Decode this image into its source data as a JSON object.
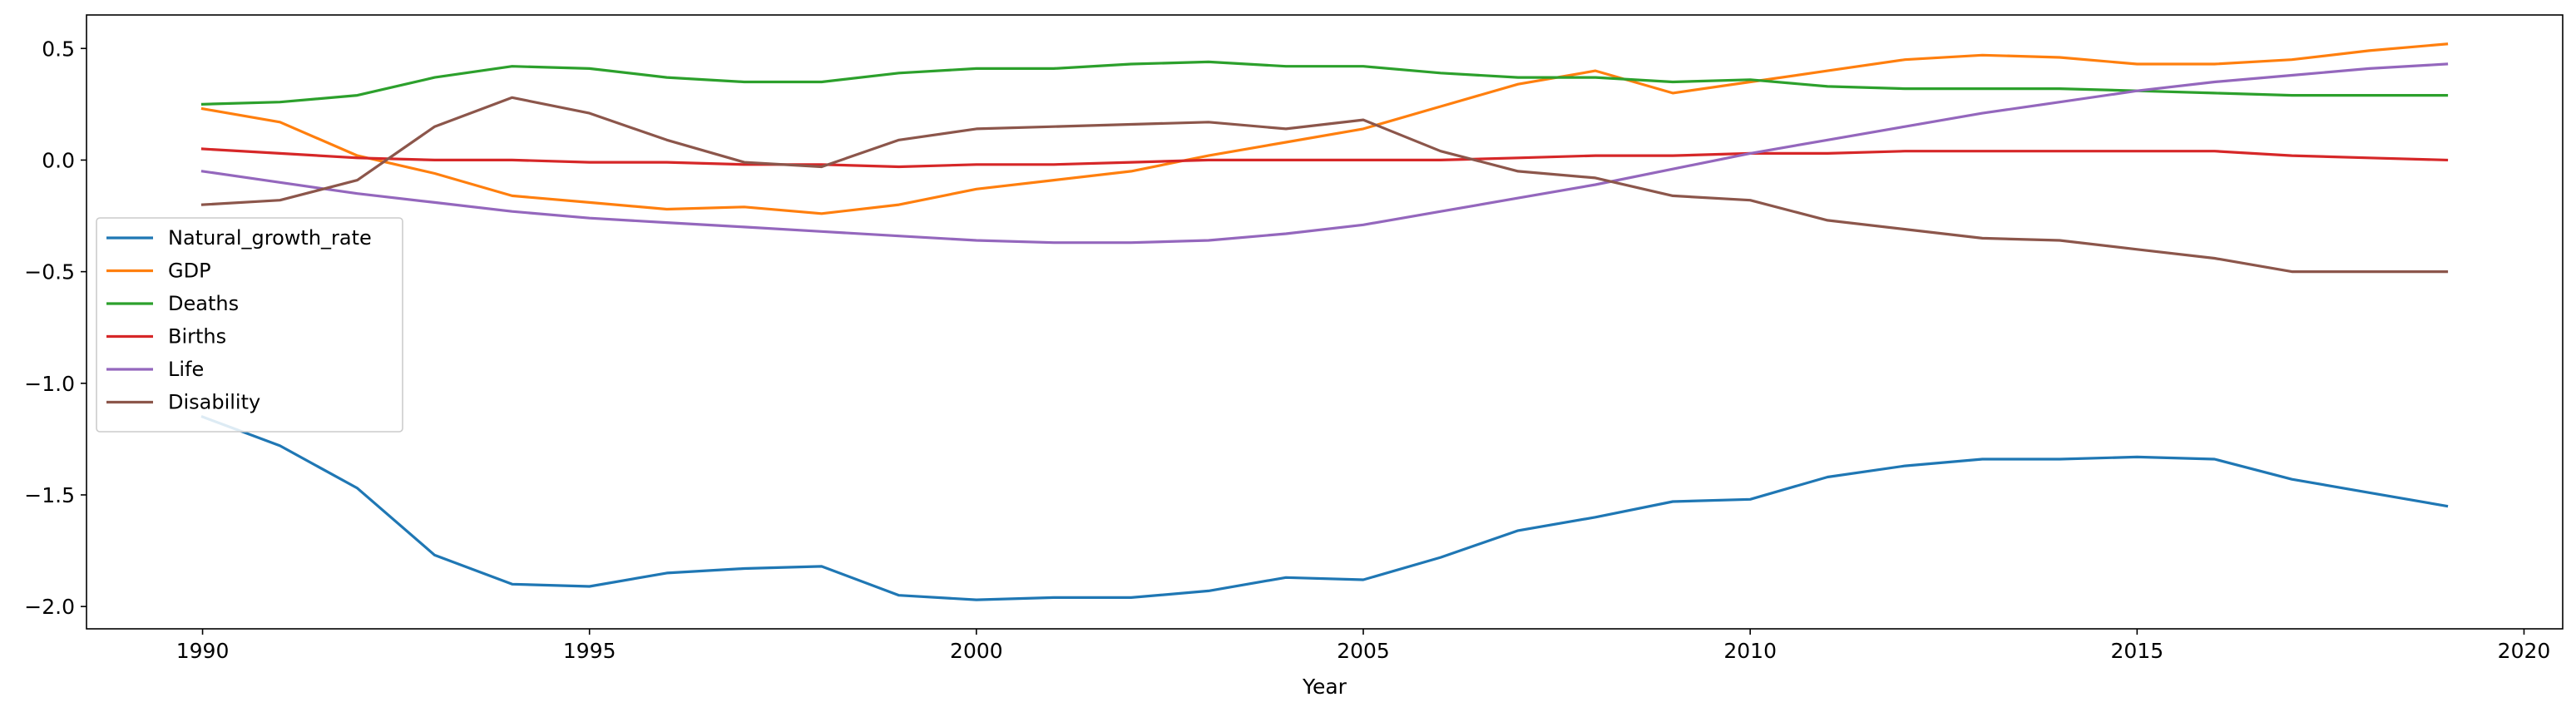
{
  "chart_data": {
    "type": "line",
    "xlabel": "Year",
    "ylabel": "",
    "xlim": [
      1988.5,
      2020.5
    ],
    "ylim": [
      -2.1,
      0.65
    ],
    "x_ticks": [
      1990,
      1995,
      2000,
      2005,
      2010,
      2015,
      2020
    ],
    "y_ticks": [
      0.5,
      0.0,
      -0.5,
      -1.0,
      -1.5,
      -2.0
    ],
    "x_tick_labels": [
      "1990",
      "1995",
      "2000",
      "2005",
      "2010",
      "2015",
      "2020"
    ],
    "y_tick_labels": [
      "0.5",
      "0.0",
      "−0.5",
      "−1.0",
      "−1.5",
      "−2.0"
    ],
    "grid": false,
    "legend_position": "center-left",
    "x": [
      1990,
      1991,
      1992,
      1993,
      1994,
      1995,
      1996,
      1997,
      1998,
      1999,
      2000,
      2001,
      2002,
      2003,
      2004,
      2005,
      2006,
      2007,
      2008,
      2009,
      2010,
      2011,
      2012,
      2013,
      2014,
      2015,
      2016,
      2017,
      2018,
      2019
    ],
    "series": [
      {
        "name": "Natural_growth_rate",
        "color": "#1f77b4",
        "values": [
          -1.15,
          -1.28,
          -1.47,
          -1.77,
          -1.9,
          -1.91,
          -1.85,
          -1.83,
          -1.82,
          -1.95,
          -1.97,
          -1.96,
          -1.96,
          -1.93,
          -1.87,
          -1.88,
          -1.78,
          -1.66,
          -1.6,
          -1.53,
          -1.52,
          -1.42,
          -1.37,
          -1.34,
          -1.34,
          -1.33,
          -1.34,
          -1.43,
          -1.49,
          -1.55
        ]
      },
      {
        "name": "GDP",
        "color": "#ff7f0e",
        "values": [
          0.23,
          0.17,
          0.02,
          -0.06,
          -0.16,
          -0.19,
          -0.22,
          -0.21,
          -0.24,
          -0.2,
          -0.13,
          -0.09,
          -0.05,
          0.02,
          0.08,
          0.14,
          0.24,
          0.34,
          0.4,
          0.3,
          0.35,
          0.4,
          0.45,
          0.47,
          0.46,
          0.43,
          0.43,
          0.45,
          0.49,
          0.52
        ]
      },
      {
        "name": "Deaths",
        "color": "#2ca02c",
        "values": [
          0.25,
          0.26,
          0.29,
          0.37,
          0.42,
          0.41,
          0.37,
          0.35,
          0.35,
          0.39,
          0.41,
          0.41,
          0.43,
          0.44,
          0.42,
          0.42,
          0.39,
          0.37,
          0.37,
          0.35,
          0.36,
          0.33,
          0.32,
          0.32,
          0.32,
          0.31,
          0.3,
          0.29,
          0.29,
          0.29
        ]
      },
      {
        "name": "Births",
        "color": "#d62728",
        "values": [
          0.05,
          0.03,
          0.01,
          0.0,
          0.0,
          -0.01,
          -0.01,
          -0.02,
          -0.02,
          -0.03,
          -0.02,
          -0.02,
          -0.01,
          0.0,
          0.0,
          0.0,
          0.0,
          0.01,
          0.02,
          0.02,
          0.03,
          0.03,
          0.04,
          0.04,
          0.04,
          0.04,
          0.04,
          0.02,
          0.01,
          0.0
        ]
      },
      {
        "name": "Life",
        "color": "#9467bd",
        "values": [
          -0.05,
          -0.1,
          -0.15,
          -0.19,
          -0.23,
          -0.26,
          -0.28,
          -0.3,
          -0.32,
          -0.34,
          -0.36,
          -0.37,
          -0.37,
          -0.36,
          -0.33,
          -0.29,
          -0.23,
          -0.17,
          -0.11,
          -0.04,
          0.03,
          0.09,
          0.15,
          0.21,
          0.26,
          0.31,
          0.35,
          0.38,
          0.41,
          0.43
        ]
      },
      {
        "name": "Disability",
        "color": "#8c564b",
        "values": [
          -0.2,
          -0.18,
          -0.09,
          0.15,
          0.28,
          0.21,
          0.09,
          -0.01,
          -0.03,
          0.09,
          0.14,
          0.15,
          0.16,
          0.17,
          0.14,
          0.18,
          0.04,
          -0.05,
          -0.08,
          -0.16,
          -0.18,
          -0.27,
          -0.31,
          -0.35,
          -0.36,
          -0.4,
          -0.44,
          -0.5,
          -0.5,
          -0.5
        ]
      }
    ]
  }
}
